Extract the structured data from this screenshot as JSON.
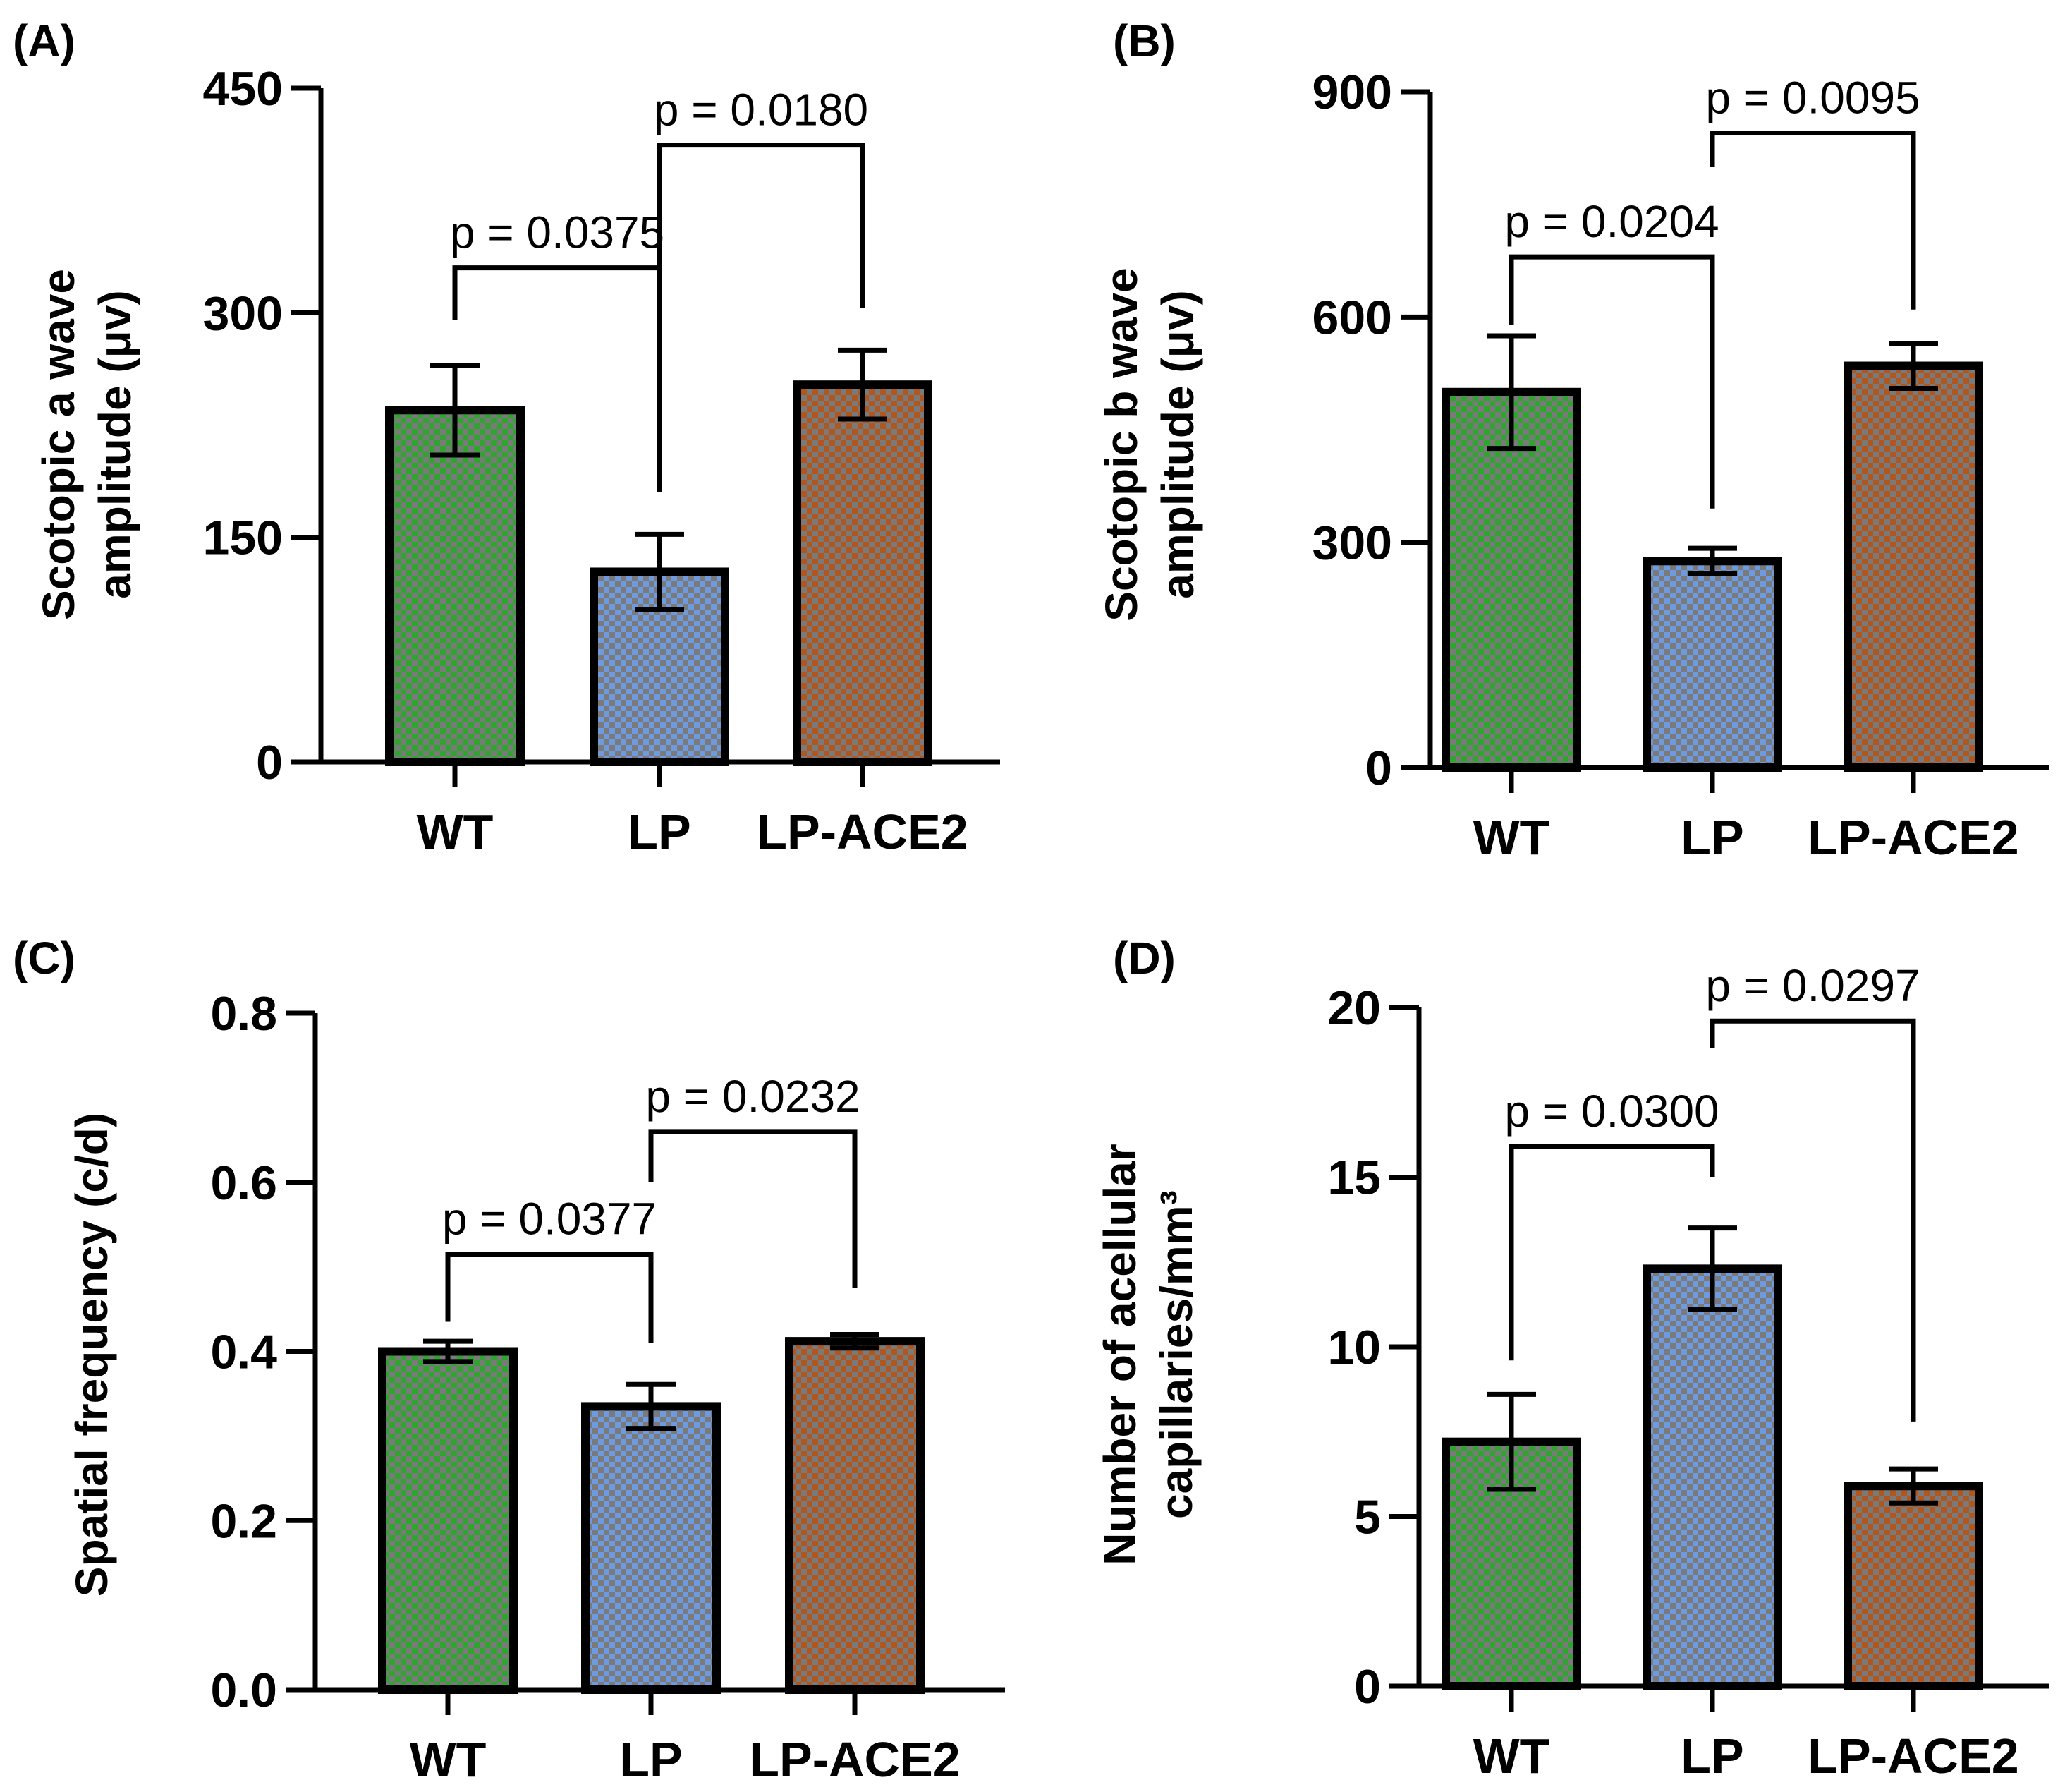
{
  "colors": {
    "WT": "#2fa52f",
    "LP": "#6e9be0",
    "LP-ACE2": "#b0571f",
    "checker": "#7a7a7a",
    "stroke": "#000000"
  },
  "chart_data": [
    {
      "panel": "(A)",
      "type": "bar",
      "categories": [
        "WT",
        "LP",
        "LP-ACE2"
      ],
      "values": [
        235,
        127,
        252
      ],
      "errors": [
        30,
        25,
        23
      ],
      "ylabel_lines": [
        "Scotopic a wave",
        "amplitude (μv)"
      ],
      "xlabel": "",
      "ylim": [
        0,
        450
      ],
      "yticks": [
        0,
        150,
        300,
        450
      ],
      "ytick_labels": [
        "0",
        "150",
        "300",
        "450"
      ],
      "comparisons": [
        {
          "from": 0,
          "to": 1,
          "p": "p = 0.0375",
          "level": 330,
          "start_from": 295,
          "start_to": 180
        },
        {
          "from": 1,
          "to": 2,
          "p": "p = 0.0180",
          "level": 412,
          "start_from": 180,
          "start_to": 303
        }
      ]
    },
    {
      "panel": "(B)",
      "type": "bar",
      "categories": [
        "WT",
        "LP",
        "LP-ACE2"
      ],
      "values": [
        500,
        275,
        535
      ],
      "errors": [
        75,
        17,
        30
      ],
      "ylabel_lines": [
        "Scotopic b wave",
        "amplitude (μv)"
      ],
      "xlabel": "",
      "ylim": [
        0,
        900
      ],
      "yticks": [
        0,
        300,
        600,
        900
      ],
      "ytick_labels": [
        "0",
        "300",
        "600",
        "900"
      ],
      "comparisons": [
        {
          "from": 0,
          "to": 1,
          "p": "p = 0.0204",
          "level": 680,
          "start_from": 590,
          "start_to": 345
        },
        {
          "from": 1,
          "to": 2,
          "p": "p = 0.0095",
          "level": 845,
          "start_from": 800,
          "start_to": 610
        }
      ]
    },
    {
      "panel": "(C)",
      "type": "bar",
      "categories": [
        "WT",
        "LP",
        "LP-ACE2"
      ],
      "values": [
        0.4,
        0.335,
        0.412
      ],
      "errors": [
        0.012,
        0.026,
        0.008
      ],
      "ylabel_lines": [
        "Spatial frequency (c/d)"
      ],
      "xlabel": "",
      "ylim": [
        0,
        0.8
      ],
      "yticks": [
        0,
        0.2,
        0.4,
        0.6,
        0.8
      ],
      "ytick_labels": [
        "0.0",
        "0.2",
        "0.4",
        "0.6",
        "0.8"
      ],
      "comparisons": [
        {
          "from": 0,
          "to": 1,
          "p": "p = 0.0377",
          "level": 0.515,
          "start_from": 0.435,
          "start_to": 0.41
        },
        {
          "from": 1,
          "to": 2,
          "p": "p = 0.0232",
          "level": 0.66,
          "start_from": 0.6,
          "start_to": 0.475
        }
      ]
    },
    {
      "panel": "(D)",
      "type": "bar",
      "categories": [
        "WT",
        "LP",
        "LP-ACE2"
      ],
      "values": [
        7.2,
        12.3,
        5.9
      ],
      "errors": [
        1.4,
        1.2,
        0.5
      ],
      "ylabel_lines": [
        "Number of acellular",
        "capillaries/mm³"
      ],
      "xlabel": "",
      "ylim": [
        0,
        20
      ],
      "yticks": [
        0,
        5,
        10,
        15,
        20
      ],
      "ytick_labels": [
        "0",
        "5",
        "10",
        "15",
        "20"
      ],
      "comparisons": [
        {
          "from": 0,
          "to": 1,
          "p": "p = 0.0300",
          "level": 15.9,
          "start_from": 9.6,
          "start_to": 15.0
        },
        {
          "from": 1,
          "to": 2,
          "p": "p = 0.0297",
          "level": 19.6,
          "start_from": 18.8,
          "start_to": 7.8
        }
      ]
    }
  ]
}
